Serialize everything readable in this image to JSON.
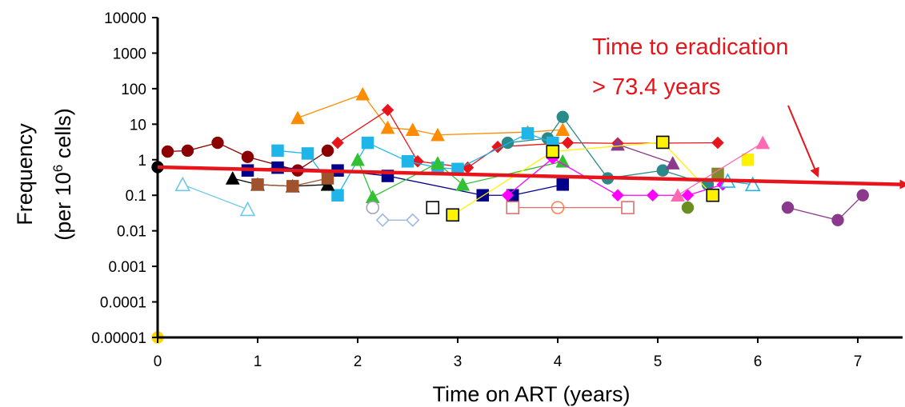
{
  "chart_data": {
    "type": "scatter",
    "xlabel": "Time on ART (years)",
    "ylabel_line1": "Frequency",
    "ylabel_line2_prefix": "(per 10",
    "ylabel_line2_sup": "6",
    "ylabel_line2_suffix": " cells)",
    "y_scale": "log",
    "xlim": [
      0,
      7.5
    ],
    "ylim": [
      1e-05,
      10000
    ],
    "x_ticks": [
      "0",
      "1",
      "2",
      "3",
      "4",
      "5",
      "6",
      "7"
    ],
    "y_ticks": [
      "10000",
      "1000",
      "100",
      "10",
      "1",
      "0.1",
      "0.01",
      "0.001",
      "0.0001",
      "0.00001"
    ],
    "grid": false,
    "annotations": [
      "Time to eradication",
      "> 73.4 years"
    ],
    "trend_line": {
      "color": "#e8141b",
      "x": [
        0,
        7.5
      ],
      "y": [
        0.62,
        0.2
      ]
    },
    "series": [
      {
        "color": "#8b0000",
        "marker": "circle",
        "fill": true,
        "x": [
          0.1,
          0.3,
          0.6,
          0.9,
          1.4,
          1.7
        ],
        "y": [
          1.7,
          1.8,
          3.0,
          1.2,
          0.5,
          1.8
        ]
      },
      {
        "color": "#ff8c00",
        "marker": "triangle",
        "fill": true,
        "x": [
          1.4,
          2.05,
          2.3,
          2.55,
          2.8,
          3.7,
          4.05
        ],
        "y": [
          15,
          70,
          8,
          7,
          5,
          6,
          7
        ]
      },
      {
        "color": "#e8141b",
        "marker": "diamond",
        "fill": true,
        "x": [
          1.8,
          2.3,
          2.6,
          3.1,
          3.4,
          4.1,
          4.6,
          5.6
        ],
        "y": [
          3,
          25,
          0.9,
          0.6,
          2.3,
          3,
          2.9,
          3
        ]
      },
      {
        "color": "#2a8a8a",
        "marker": "circle",
        "fill": true,
        "x": [
          3.5,
          3.9,
          4.05,
          4.5,
          5.05,
          5.5
        ],
        "y": [
          3,
          4,
          16,
          0.3,
          0.5,
          0.2
        ]
      },
      {
        "color": "#1fb5e8",
        "marker": "square",
        "fill": true,
        "x": [
          1.2,
          1.5,
          1.8,
          2.1,
          2.5,
          2.8,
          3.0,
          3.7,
          3.95
        ],
        "y": [
          1.8,
          1.5,
          0.1,
          3,
          0.9,
          0.6,
          0.55,
          5.5,
          3
        ]
      },
      {
        "color": "#00008b",
        "marker": "square",
        "fill": true,
        "x": [
          0.9,
          1.2,
          1.8,
          2.3,
          3.25,
          3.55,
          4.05
        ],
        "y": [
          0.5,
          0.6,
          0.5,
          0.35,
          0.1,
          0.1,
          0.2
        ]
      },
      {
        "color": "#000000",
        "marker": "triangle",
        "fill": true,
        "x": [
          0.75,
          1.0,
          1.35,
          1.7
        ],
        "y": [
          0.3,
          0.2,
          0.18,
          0.2
        ]
      },
      {
        "color": "#33c033",
        "marker": "triangle",
        "fill": true,
        "x": [
          2.0,
          2.15,
          2.8,
          3.05,
          4.05
        ],
        "y": [
          1.0,
          0.09,
          0.8,
          0.2,
          0.9
        ]
      },
      {
        "color": "#ff00ff",
        "marker": "diamond",
        "fill": true,
        "x": [
          3.5,
          3.95,
          4.6,
          4.95,
          5.3,
          5.65
        ],
        "y": [
          0.1,
          1.1,
          0.1,
          0.1,
          0.1,
          0.2
        ]
      },
      {
        "color": "#8b3a8b",
        "marker": "circle",
        "fill": true,
        "x": [
          6.3,
          6.8,
          7.05
        ],
        "y": [
          0.045,
          0.02,
          0.1
        ]
      },
      {
        "color": "#8b3a8b",
        "marker": "triangle",
        "fill": true,
        "x": [
          4.6,
          5.15
        ],
        "y": [
          2.7,
          0.8
        ]
      },
      {
        "color": "#fff200",
        "marker": "square",
        "fill": true,
        "stroke": "#000000",
        "x": [
          2.95,
          3.95,
          5.05,
          5.55
        ],
        "y": [
          0.028,
          1.7,
          3.1,
          0.1
        ]
      },
      {
        "color": "#fff200",
        "marker": "square",
        "fill": true,
        "x": [
          5.9
        ],
        "y": [
          1.0
        ]
      },
      {
        "color": "#7f8a2a",
        "marker": "square",
        "fill": true,
        "x": [
          5.6
        ],
        "y": [
          0.4
        ]
      },
      {
        "color": "#a0522d",
        "marker": "square",
        "fill": true,
        "x": [
          1.0,
          1.35,
          1.7
        ],
        "y": [
          0.2,
          0.18,
          0.3
        ]
      },
      {
        "color": "#6fc8e8",
        "marker": "triangle",
        "fill": false,
        "x": [
          0.25,
          0.9
        ],
        "y": [
          0.2,
          0.04
        ]
      },
      {
        "color": "#a0b8e0",
        "marker": "diamond",
        "fill": false,
        "x": [
          2.25,
          2.55
        ],
        "y": [
          0.02,
          0.02
        ]
      },
      {
        "color": "#ff7f50",
        "marker": "circle",
        "fill": false,
        "x": [
          4.0
        ],
        "y": [
          0.045
        ]
      },
      {
        "color": "#e07070",
        "marker": "square",
        "fill": false,
        "x": [
          3.55,
          4.7
        ],
        "y": [
          0.045,
          0.045
        ]
      },
      {
        "color": "#000000",
        "marker": "square",
        "fill": false,
        "x": [
          2.75
        ],
        "y": [
          0.045
        ]
      },
      {
        "color": "#a0a0c0",
        "marker": "circle",
        "fill": false,
        "x": [
          2.15
        ],
        "y": [
          0.045
        ]
      },
      {
        "color": "#1fb5e8",
        "marker": "triangle",
        "fill": false,
        "x": [
          5.7,
          5.95
        ],
        "y": [
          0.25,
          0.2
        ]
      },
      {
        "color": "#6b8e23",
        "marker": "circle",
        "fill": true,
        "x": [
          5.3
        ],
        "y": [
          0.045
        ]
      },
      {
        "color": "#ff69b4",
        "marker": "triangle",
        "fill": true,
        "x": [
          5.2,
          6.05
        ],
        "y": [
          0.1,
          3.0
        ]
      },
      {
        "color": "#ffd700",
        "marker": "circle",
        "fill": true,
        "x": [
          0.0
        ],
        "y": [
          1e-05
        ]
      },
      {
        "color": "#000000",
        "marker": "circle",
        "fill": true,
        "x": [
          0.0
        ],
        "y": [
          0.62
        ]
      }
    ]
  }
}
